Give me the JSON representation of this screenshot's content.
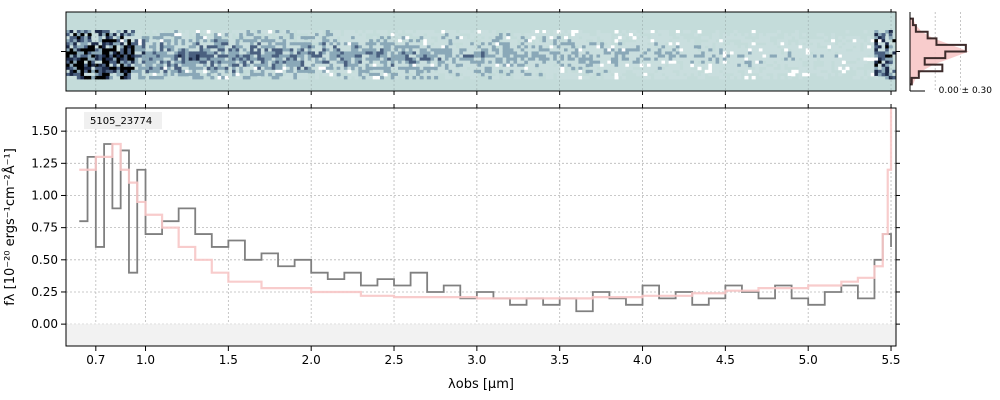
{
  "chart_data": [
    {
      "type": "heatmap",
      "panel": "2d-spectrum",
      "colormap": [
        "#ffffff",
        "#c9dede",
        "#8aa8b8",
        "#4a6080",
        "#1d2a48",
        "#000000"
      ],
      "background_color": "#c4dcda",
      "xlim": [
        0.52,
        5.53
      ],
      "ylim": [
        0,
        1
      ],
      "x_ticks": [
        0.7,
        1.0,
        1.5,
        2.0,
        2.5,
        3.0,
        3.5,
        4.0,
        4.5,
        5.0,
        5.5
      ],
      "y_ticks": [
        0.5
      ],
      "grid": true
    },
    {
      "type": "line",
      "panel": "1d-spectrum",
      "title": "",
      "xlabel": "λobs [μm]",
      "ylabel": "fλ [10⁻²⁰ ergs⁻¹cm⁻²Å⁻¹]",
      "xlim": [
        0.52,
        5.53
      ],
      "ylim": [
        -0.17,
        1.68
      ],
      "x_ticks": [
        0.7,
        1.0,
        1.5,
        2.0,
        2.5,
        3.0,
        3.5,
        4.0,
        4.5,
        5.0,
        5.5
      ],
      "x_tick_labels": [
        "0.7",
        "1.0",
        "1.5",
        "2.0",
        "2.5",
        "3.0",
        "3.5",
        "4.0",
        "4.5",
        "5.0",
        "5.5"
      ],
      "y_ticks": [
        0.0,
        0.25,
        0.5,
        0.75,
        1.0,
        1.25,
        1.5
      ],
      "y_tick_labels": [
        "0.00",
        "0.25",
        "0.50",
        "0.75",
        "1.00",
        "1.25",
        "1.50"
      ],
      "grid": true,
      "annotation": "5105_23774",
      "series": [
        {
          "color": "#808080",
          "step": true,
          "x": [
            0.6,
            0.65,
            0.7,
            0.75,
            0.8,
            0.85,
            0.9,
            0.95,
            1.0,
            1.1,
            1.2,
            1.3,
            1.4,
            1.5,
            1.6,
            1.7,
            1.8,
            1.9,
            2.0,
            2.1,
            2.2,
            2.3,
            2.4,
            2.5,
            2.6,
            2.7,
            2.8,
            2.9,
            3.0,
            3.1,
            3.2,
            3.3,
            3.4,
            3.5,
            3.6,
            3.7,
            3.8,
            3.9,
            4.0,
            4.1,
            4.2,
            4.3,
            4.4,
            4.5,
            4.6,
            4.7,
            4.8,
            4.9,
            5.0,
            5.1,
            5.2,
            5.3,
            5.4,
            5.45,
            5.5
          ],
          "y": [
            0.8,
            1.3,
            0.6,
            1.4,
            0.9,
            1.35,
            0.4,
            1.2,
            0.7,
            0.8,
            0.9,
            0.7,
            0.6,
            0.65,
            0.5,
            0.55,
            0.45,
            0.5,
            0.4,
            0.35,
            0.4,
            0.3,
            0.35,
            0.3,
            0.4,
            0.25,
            0.3,
            0.2,
            0.25,
            0.2,
            0.15,
            0.2,
            0.15,
            0.2,
            0.1,
            0.25,
            0.2,
            0.15,
            0.3,
            0.2,
            0.25,
            0.15,
            0.2,
            0.3,
            0.25,
            0.2,
            0.3,
            0.2,
            0.15,
            0.25,
            0.3,
            0.2,
            0.5,
            0.7,
            0.6
          ]
        },
        {
          "color": "#f7c6c6",
          "step": true,
          "x": [
            0.6,
            0.7,
            0.8,
            0.85,
            0.9,
            0.95,
            1.0,
            1.1,
            1.2,
            1.3,
            1.4,
            1.5,
            1.7,
            2.0,
            2.3,
            2.5,
            2.7,
            3.0,
            3.3,
            3.5,
            3.7,
            4.0,
            4.3,
            4.5,
            4.7,
            5.0,
            5.2,
            5.3,
            5.4,
            5.45,
            5.48,
            5.5
          ],
          "y": [
            1.2,
            1.3,
            1.4,
            1.2,
            1.1,
            0.95,
            0.85,
            0.75,
            0.6,
            0.5,
            0.4,
            0.33,
            0.28,
            0.25,
            0.22,
            0.21,
            0.21,
            0.2,
            0.2,
            0.2,
            0.21,
            0.22,
            0.24,
            0.26,
            0.28,
            0.3,
            0.33,
            0.36,
            0.45,
            0.7,
            1.2,
            1.68
          ]
        }
      ]
    },
    {
      "type": "area",
      "panel": "histogram",
      "orientation": "horizontal",
      "annotation": "0.00 ± 0.30",
      "series": [
        {
          "color": "#f7c6c6",
          "fill": true,
          "y": [
            -1.0,
            -0.8,
            -0.6,
            -0.4,
            -0.2,
            0.0,
            0.2,
            0.4,
            0.6,
            0.8,
            1.0
          ],
          "x": [
            0.05,
            0.1,
            0.2,
            0.4,
            0.7,
            1.0,
            0.7,
            0.4,
            0.2,
            0.1,
            0.05
          ]
        },
        {
          "color": "#3d2b2b",
          "fill": false,
          "step": true,
          "y": [
            -1.0,
            -0.8,
            -0.6,
            -0.4,
            -0.2,
            0.0,
            0.2,
            0.4,
            0.6,
            0.8,
            1.0
          ],
          "x": [
            0.03,
            0.15,
            0.55,
            0.25,
            0.6,
            0.95,
            0.45,
            0.3,
            0.1,
            0.05,
            0.02
          ]
        }
      ]
    }
  ]
}
